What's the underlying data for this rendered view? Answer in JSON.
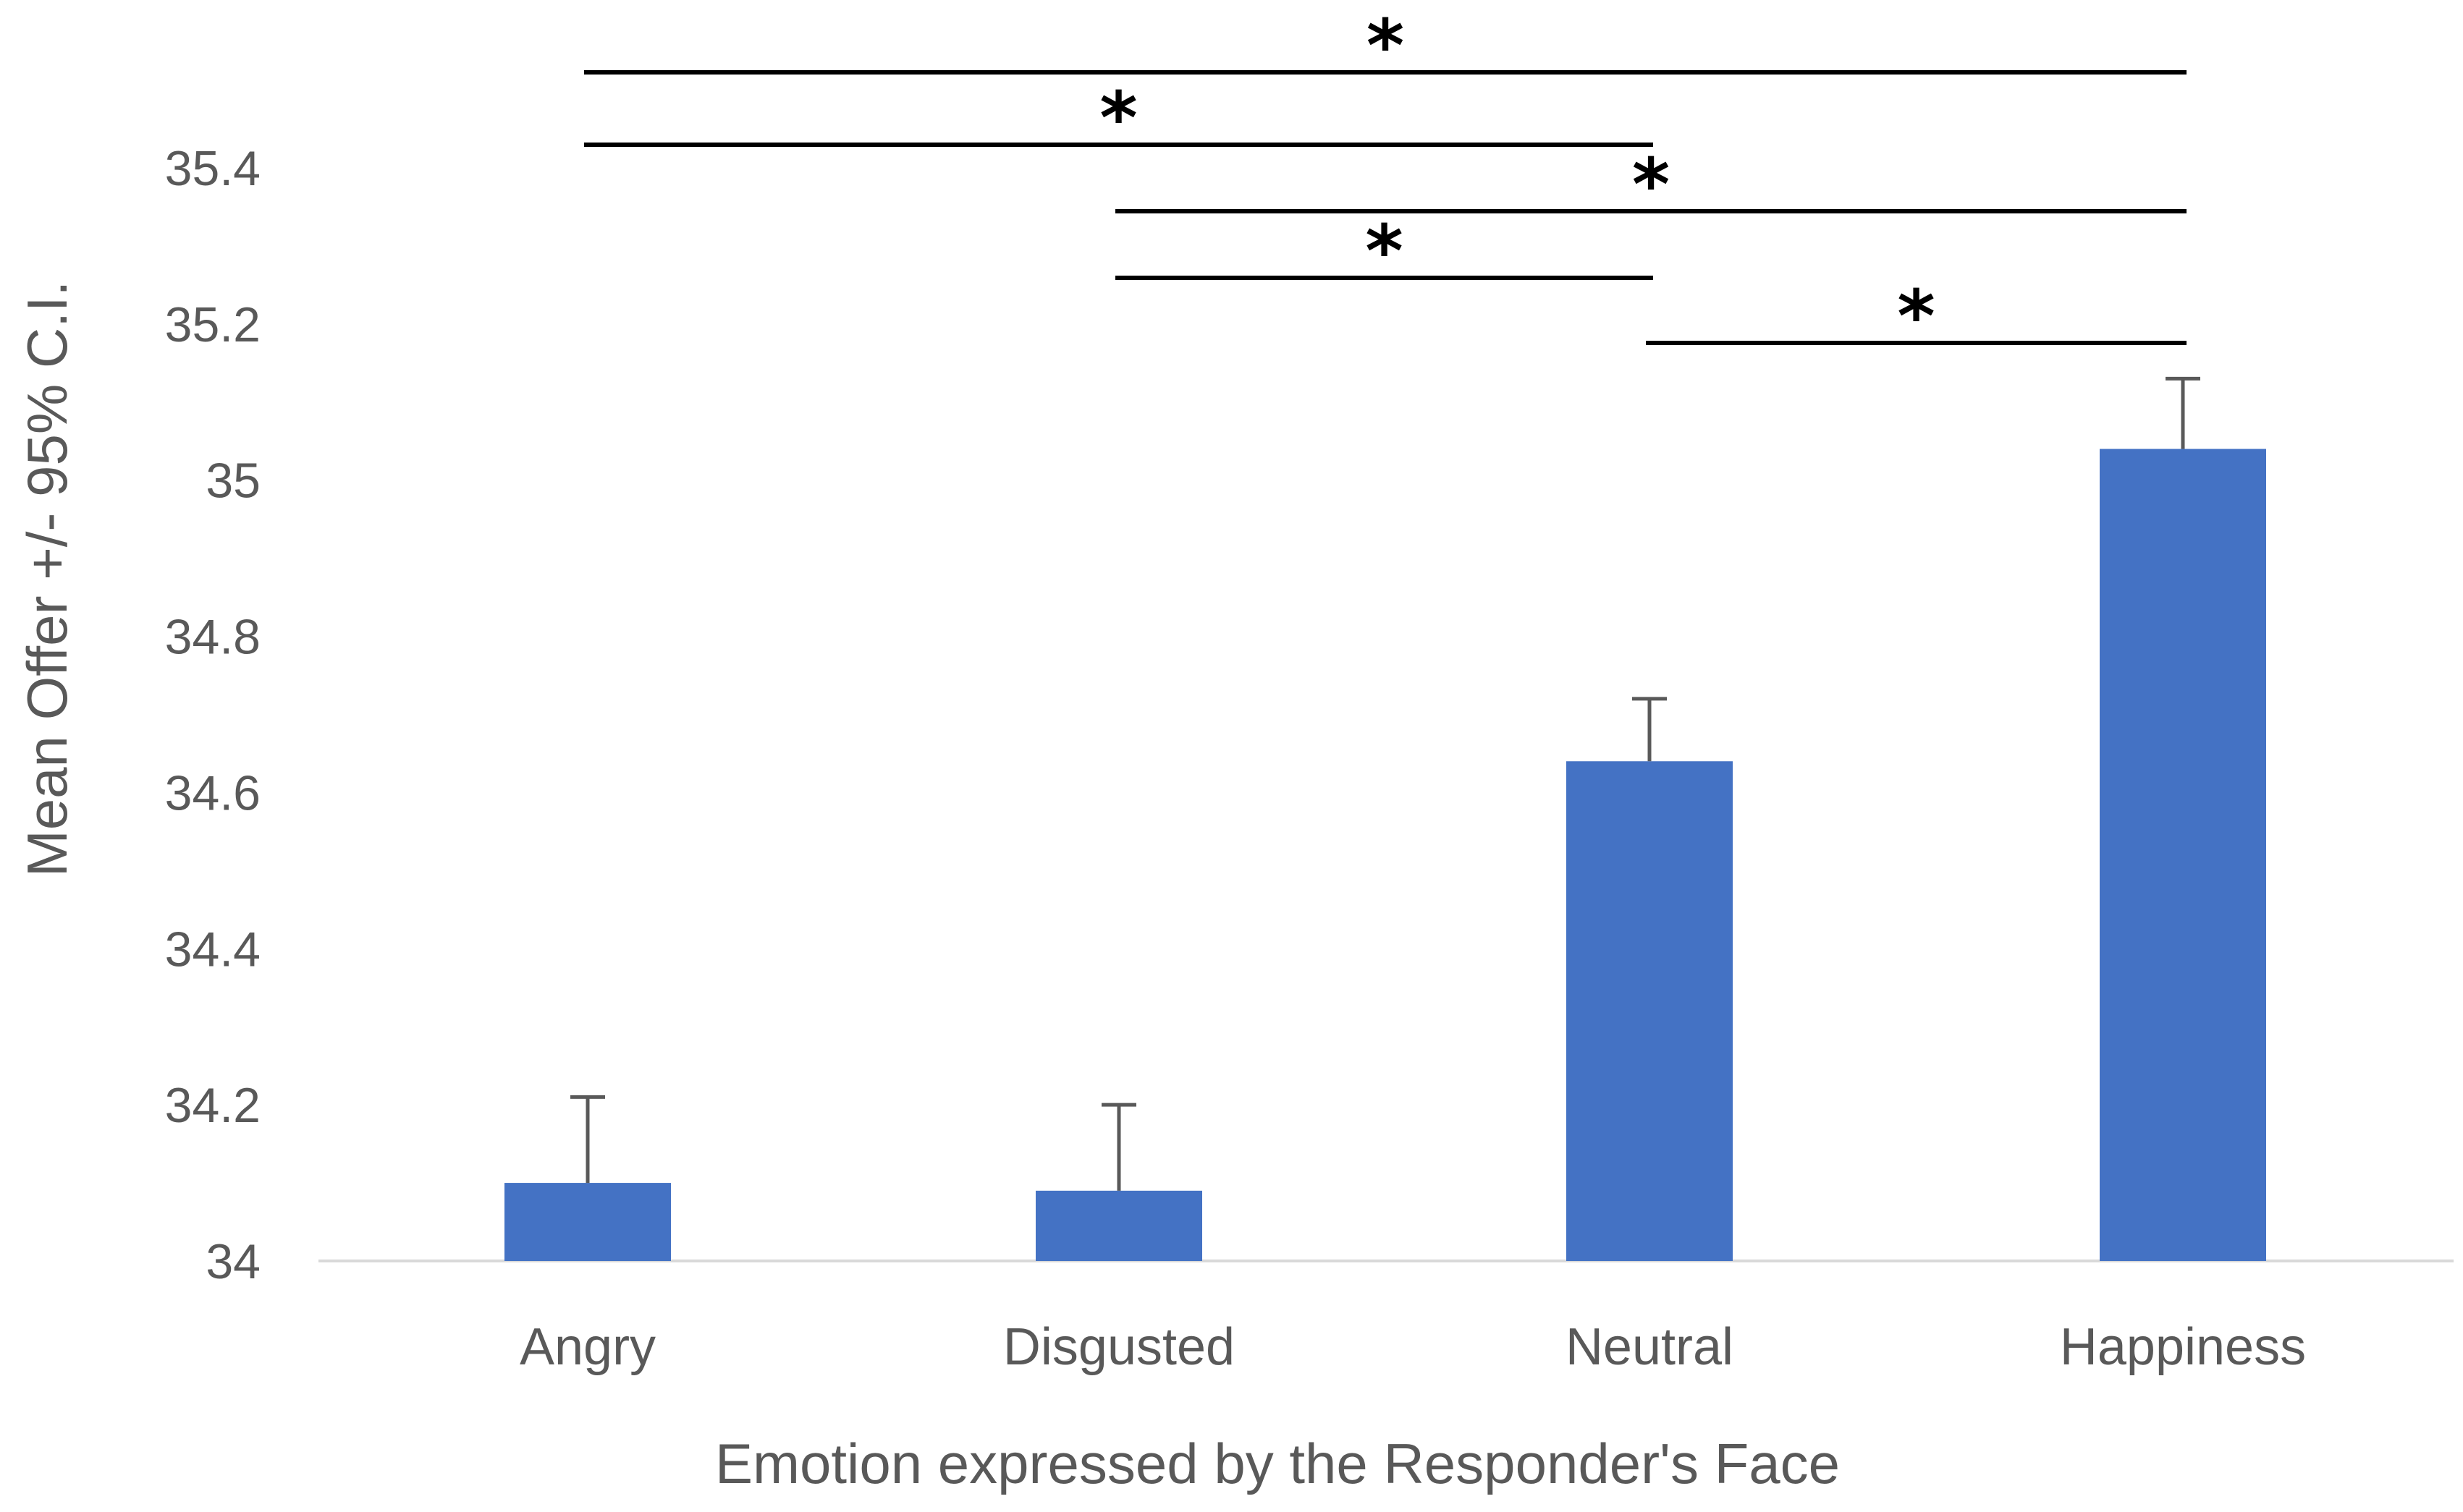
{
  "chart_data": {
    "type": "bar",
    "title": "",
    "categories": [
      "Angry",
      "Disgusted",
      "Neutral",
      "Happiness"
    ],
    "series": [
      {
        "name": "Mean Offer",
        "values": [
          34.1,
          34.09,
          34.64,
          35.04
        ],
        "error_upper": [
          0.11,
          0.11,
          0.08,
          0.09
        ]
      }
    ],
    "xlabel": "Emotion expressed by the Responder's Face",
    "ylabel": "Mean Offer +/-  95% C.I.",
    "ylim": [
      34,
      35.4
    ],
    "yticks": [
      "34",
      "34.2",
      "34.4",
      "34.6",
      "34.8",
      "35",
      "35.2",
      "35.4"
    ],
    "ytick_values": [
      34,
      34.2,
      34.4,
      34.6,
      34.8,
      35,
      35.2,
      35.4
    ],
    "grid": false,
    "bar_color": "#4472C4",
    "significance": [
      {
        "from": "Angry",
        "to": "Happiness",
        "label": "*"
      },
      {
        "from": "Angry",
        "to": "Neutral",
        "label": "*"
      },
      {
        "from": "Disgusted",
        "to": "Happiness",
        "label": "*"
      },
      {
        "from": "Disgusted",
        "to": "Neutral",
        "label": "*"
      },
      {
        "from": "Neutral",
        "to": "Happiness",
        "label": "*"
      }
    ]
  }
}
